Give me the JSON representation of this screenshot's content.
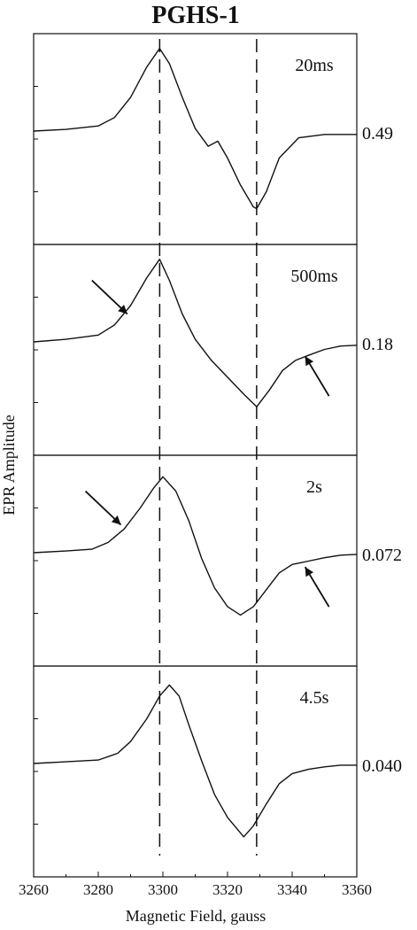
{
  "chart_data": {
    "type": "line",
    "title": "PGHS-1",
    "xlabel": "Magnetic Field, gauss",
    "ylabel": "EPR Amplitude",
    "xlim": [
      3260,
      3360
    ],
    "x_ticks": [
      "3260",
      "3280",
      "3300",
      "3320",
      "3340",
      "3360"
    ],
    "reference_lines_x": [
      3299,
      3329
    ],
    "grid": false,
    "panels": [
      {
        "time_label": "20ms",
        "scale_label": "0.49",
        "arrows": [],
        "series": [
          {
            "x": [
              3260,
              3270,
              3280,
              3285,
              3290,
              3295,
              3299,
              3302,
              3306,
              3310,
              3314,
              3317,
              3320,
              3324,
              3328,
              3329,
              3332,
              3336,
              3342,
              3350,
              3360
            ],
            "y": [
              0.02,
              0.04,
              0.08,
              0.18,
              0.42,
              0.78,
              1.0,
              0.82,
              0.42,
              0.05,
              -0.16,
              -0.1,
              -0.3,
              -0.62,
              -0.88,
              -0.9,
              -0.7,
              -0.3,
              -0.06,
              -0.02,
              -0.02
            ]
          }
        ]
      },
      {
        "time_label": "500ms",
        "scale_label": "0.18",
        "arrows": [
          {
            "x": 3289,
            "direction": "down-right"
          },
          {
            "x": 3344,
            "direction": "up-left"
          }
        ],
        "series": [
          {
            "x": [
              3260,
              3270,
              3280,
              3285,
              3290,
              3295,
              3299,
              3302,
              3306,
              3310,
              3315,
              3320,
              3325,
              3329,
              3333,
              3337,
              3341,
              3345,
              3350,
              3355,
              3360
            ],
            "y": [
              0.02,
              0.05,
              0.1,
              0.22,
              0.45,
              0.78,
              1.0,
              0.75,
              0.35,
              0.05,
              -0.2,
              -0.4,
              -0.6,
              -0.75,
              -0.55,
              -0.32,
              -0.2,
              -0.14,
              -0.07,
              -0.03,
              -0.02
            ]
          }
        ]
      },
      {
        "time_label": "2s",
        "scale_label": "0.072",
        "arrows": [
          {
            "x": 3287,
            "direction": "down-right"
          },
          {
            "x": 3344,
            "direction": "up-left"
          }
        ],
        "series": [
          {
            "x": [
              3260,
              3270,
              3278,
              3283,
              3288,
              3293,
              3297,
              3300,
              3304,
              3308,
              3312,
              3316,
              3320,
              3324,
              3328,
              3332,
              3336,
              3340,
              3345,
              3350,
              3355,
              3360
            ],
            "y": [
              0.02,
              0.04,
              0.06,
              0.14,
              0.3,
              0.55,
              0.78,
              0.92,
              0.75,
              0.4,
              -0.05,
              -0.4,
              -0.62,
              -0.72,
              -0.62,
              -0.42,
              -0.22,
              -0.12,
              -0.08,
              -0.04,
              -0.01,
              0.0
            ]
          }
        ]
      },
      {
        "time_label": "4.5s",
        "scale_label": "0.040",
        "arrows": [],
        "series": [
          {
            "x": [
              3260,
              3270,
              3280,
              3286,
              3290,
              3295,
              3299,
              3302,
              3305,
              3308,
              3312,
              3316,
              3320,
              3325,
              3328,
              3332,
              3336,
              3340,
              3345,
              3350,
              3355,
              3360
            ],
            "y": [
              0.02,
              0.04,
              0.06,
              0.14,
              0.28,
              0.55,
              0.82,
              0.95,
              0.82,
              0.48,
              0.05,
              -0.35,
              -0.62,
              -0.85,
              -0.72,
              -0.46,
              -0.22,
              -0.1,
              -0.05,
              -0.02,
              0.0,
              0.0
            ]
          }
        ]
      }
    ]
  }
}
